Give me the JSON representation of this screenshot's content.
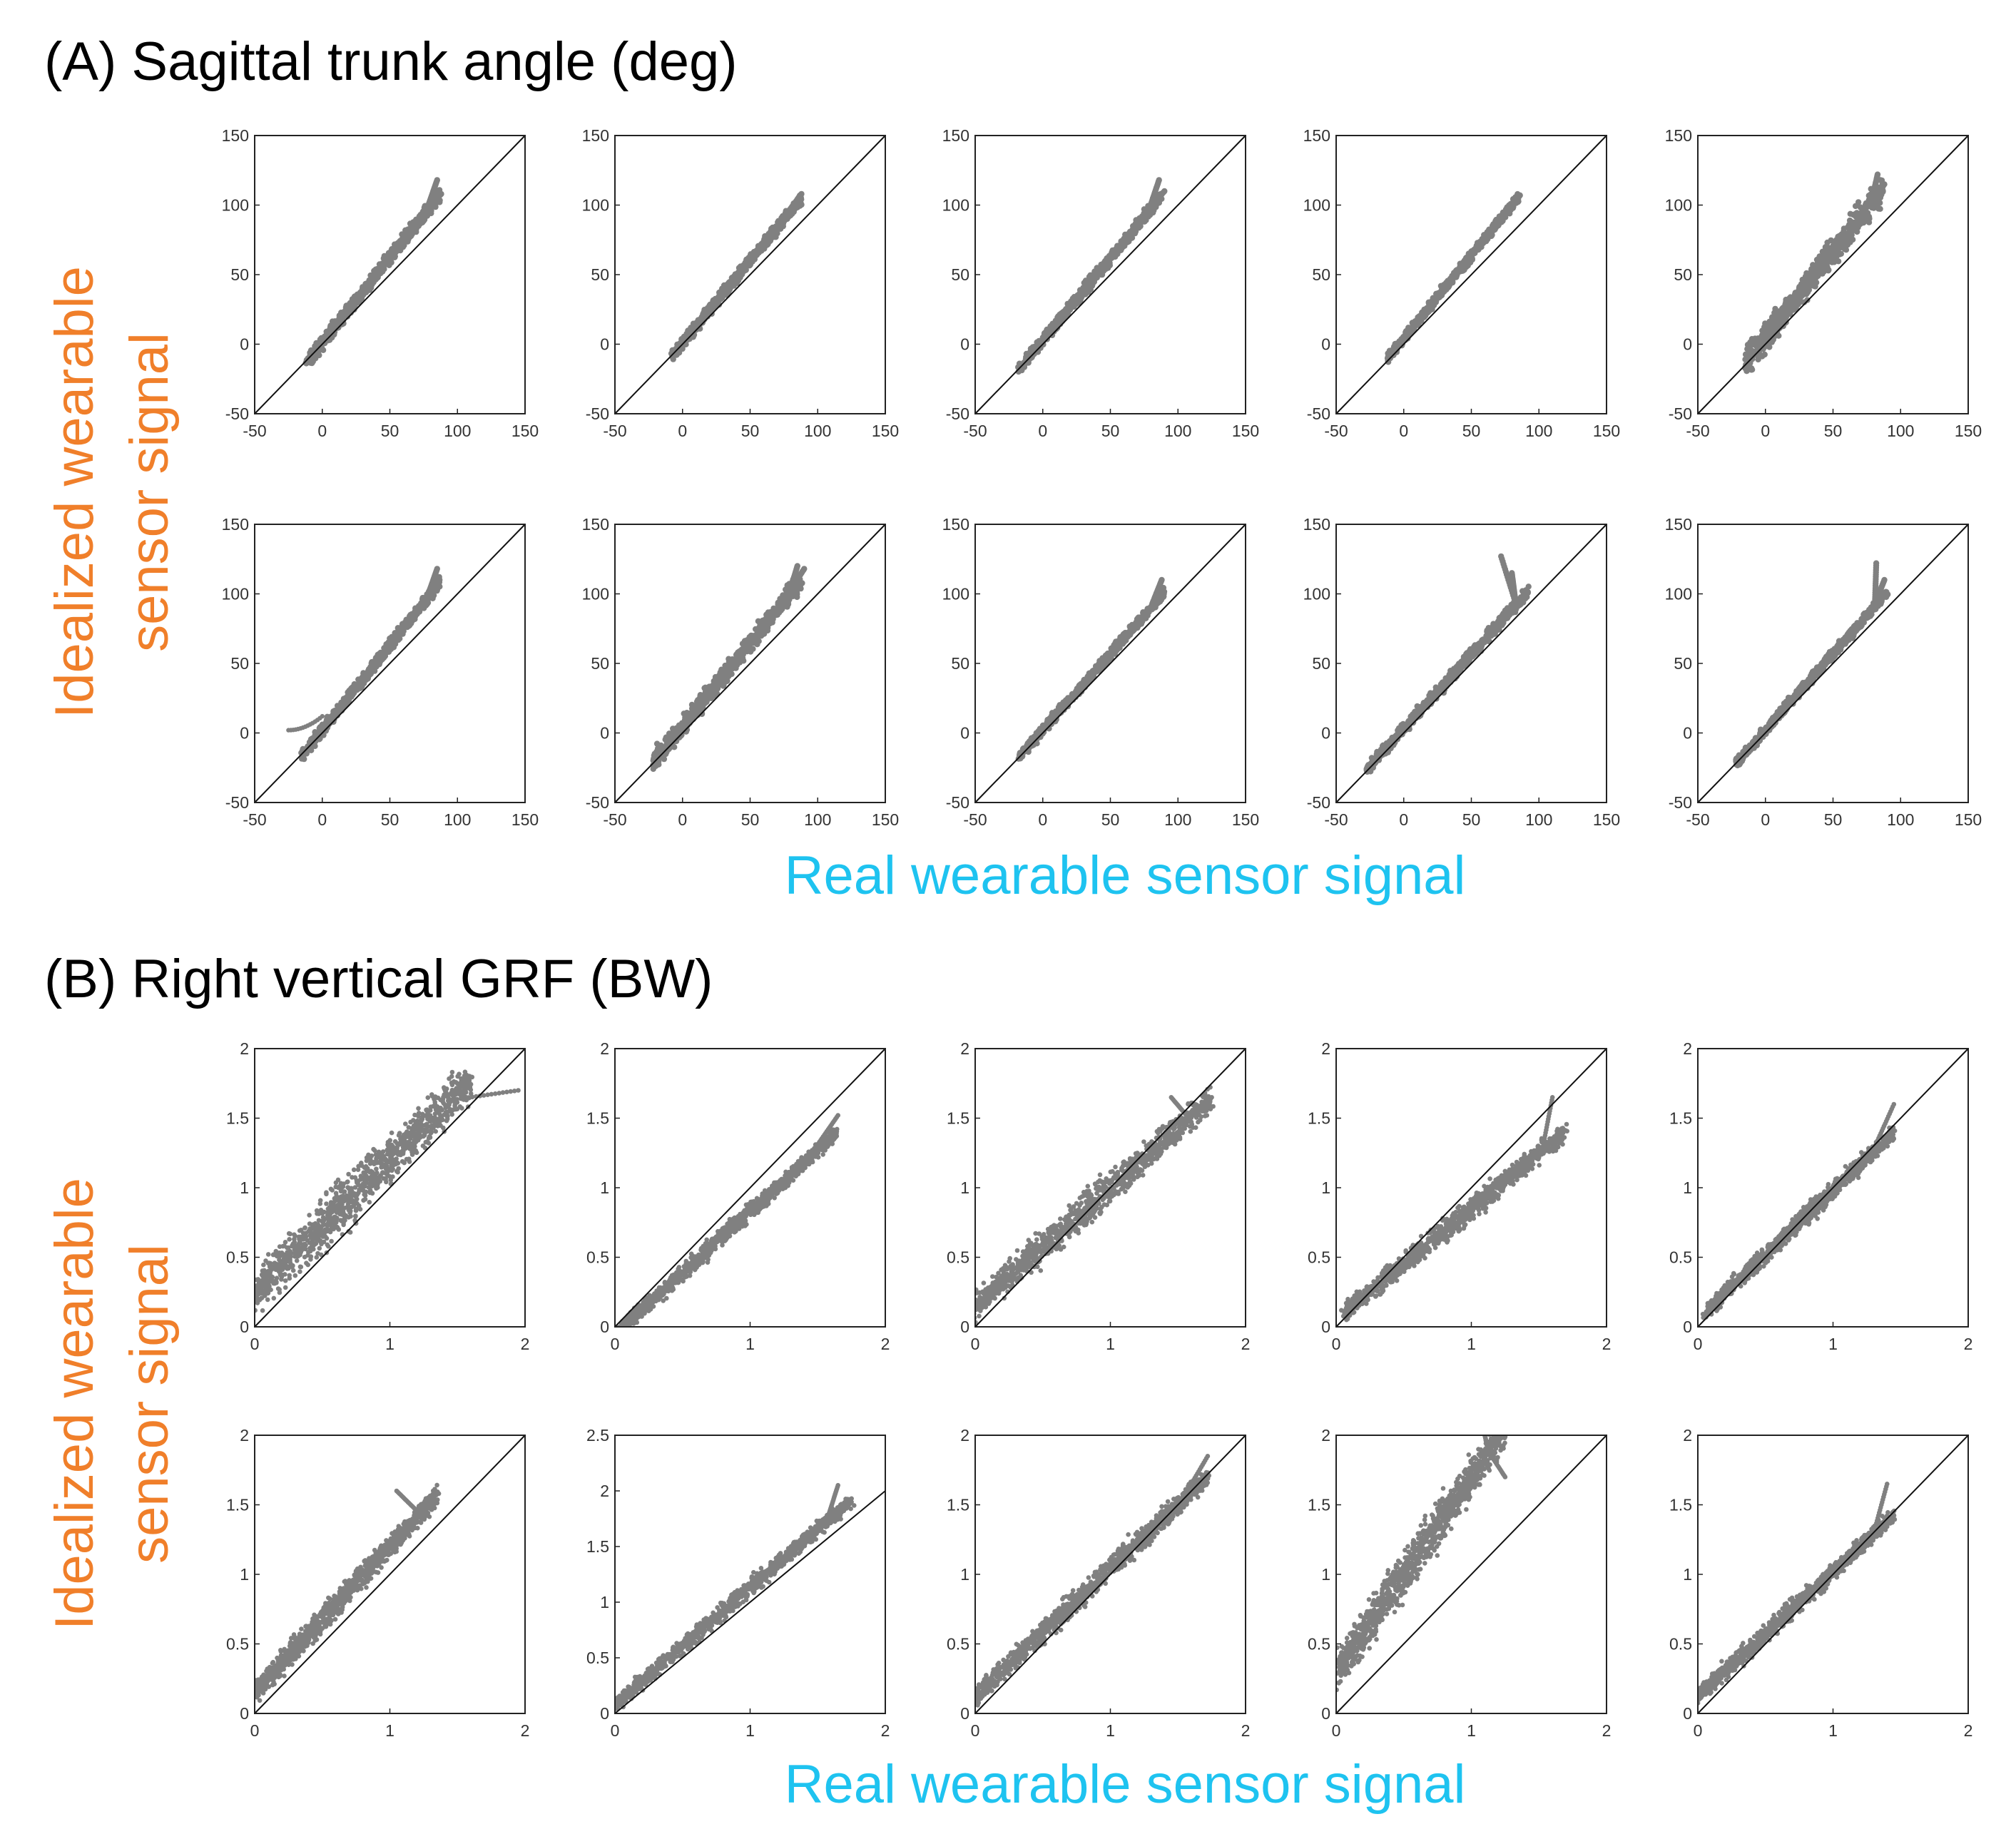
{
  "sections": {
    "A": {
      "title": "(A) Sagittal trunk angle (deg)"
    },
    "B": {
      "title": "(B) Right vertical GRF (BW)"
    }
  },
  "labels": {
    "y_line1": "Idealized wearable",
    "y_line2": "sensor signal",
    "x": "Real wearable sensor signal"
  },
  "colors": {
    "points": "#808080",
    "identity_line": "#111111",
    "ylabel": "#f07f2a",
    "xlabel": "#1ec3f0",
    "frame": "#222222"
  },
  "chart_data": [
    {
      "type": "scatter",
      "section": "A",
      "row": 1,
      "col": 1,
      "xlim": [
        -50,
        150
      ],
      "ylim": [
        -50,
        150
      ],
      "xticks": [
        -50,
        0,
        50,
        100,
        150
      ],
      "yticks": [
        -50,
        0,
        50,
        100,
        150
      ],
      "identity_line": true,
      "cloud": {
        "kind": "band",
        "x_range": [
          -12,
          87
        ],
        "slope": 1.23,
        "intercept": 1,
        "spread": 7,
        "tip": [
          [
            85,
            118
          ],
          [
            88,
            108
          ]
        ]
      }
    },
    {
      "type": "scatter",
      "section": "A",
      "row": 1,
      "col": 2,
      "xlim": [
        -50,
        150
      ],
      "ylim": [
        -50,
        150
      ],
      "xticks": [
        -50,
        0,
        50,
        100,
        150
      ],
      "yticks": [
        -50,
        0,
        50,
        100,
        150
      ],
      "identity_line": true,
      "cloud": {
        "kind": "band",
        "x_range": [
          -8,
          88
        ],
        "slope": 1.18,
        "intercept": 1,
        "spread": 6,
        "tip": [
          [
            88,
            108
          ]
        ]
      }
    },
    {
      "type": "scatter",
      "section": "A",
      "row": 1,
      "col": 3,
      "xlim": [
        -50,
        150
      ],
      "ylim": [
        -50,
        150
      ],
      "xticks": [
        -50,
        0,
        50,
        100,
        150
      ],
      "yticks": [
        -50,
        0,
        50,
        100,
        150
      ],
      "identity_line": true,
      "cloud": {
        "kind": "band",
        "x_range": [
          -18,
          88
        ],
        "slope": 1.18,
        "intercept": 3,
        "spread": 6,
        "tip": [
          [
            86,
            118
          ],
          [
            90,
            110
          ]
        ]
      }
    },
    {
      "type": "scatter",
      "section": "A",
      "row": 1,
      "col": 4,
      "xlim": [
        -50,
        150
      ],
      "ylim": [
        -50,
        150
      ],
      "xticks": [
        -50,
        0,
        50,
        100,
        150
      ],
      "yticks": [
        -50,
        0,
        50,
        100,
        150
      ],
      "identity_line": true,
      "cloud": {
        "kind": "band",
        "x_range": [
          -12,
          85
        ],
        "slope": 1.2,
        "intercept": 4,
        "spread": 5,
        "tip": [
          [
            86,
            107
          ]
        ]
      }
    },
    {
      "type": "scatter",
      "section": "A",
      "row": 1,
      "col": 5,
      "xlim": [
        -50,
        150
      ],
      "ylim": [
        -50,
        150
      ],
      "xticks": [
        -50,
        0,
        50,
        100,
        150
      ],
      "yticks": [
        -50,
        0,
        50,
        100,
        150
      ],
      "identity_line": true,
      "cloud": {
        "kind": "band",
        "x_range": [
          -15,
          87
        ],
        "slope": 1.22,
        "intercept": 5,
        "spread": 14,
        "tip": [
          [
            83,
            122
          ],
          [
            88,
            115
          ]
        ]
      }
    },
    {
      "type": "scatter",
      "section": "A",
      "row": 2,
      "col": 1,
      "xlim": [
        -50,
        150
      ],
      "ylim": [
        -50,
        150
      ],
      "xticks": [
        -50,
        0,
        50,
        100,
        150
      ],
      "yticks": [
        -50,
        0,
        50,
        100,
        150
      ],
      "identity_line": true,
      "cloud": {
        "kind": "band",
        "x_range": [
          -15,
          87
        ],
        "slope": 1.22,
        "intercept": 2,
        "spread": 6,
        "tip": [
          [
            85,
            118
          ]
        ]
      },
      "outlier_trail": {
        "x_range": [
          -25,
          0
        ],
        "y_range": [
          2,
          12
        ]
      }
    },
    {
      "type": "scatter",
      "section": "A",
      "row": 2,
      "col": 2,
      "xlim": [
        -50,
        150
      ],
      "ylim": [
        -50,
        150
      ],
      "xticks": [
        -50,
        0,
        50,
        100,
        150
      ],
      "yticks": [
        -50,
        0,
        50,
        100,
        150
      ],
      "identity_line": true,
      "cloud": {
        "kind": "band",
        "x_range": [
          -22,
          88
        ],
        "slope": 1.2,
        "intercept": 5,
        "spread": 10,
        "tip": [
          [
            85,
            120
          ],
          [
            90,
            118
          ]
        ]
      }
    },
    {
      "type": "scatter",
      "section": "A",
      "row": 2,
      "col": 3,
      "xlim": [
        -50,
        150
      ],
      "ylim": [
        -50,
        150
      ],
      "xticks": [
        -50,
        0,
        50,
        100,
        150
      ],
      "yticks": [
        -50,
        0,
        50,
        100,
        150
      ],
      "identity_line": true,
      "cloud": {
        "kind": "band",
        "x_range": [
          -18,
          90
        ],
        "slope": 1.1,
        "intercept": 2,
        "spread": 5,
        "tip": [
          [
            88,
            110
          ]
        ]
      }
    },
    {
      "type": "scatter",
      "section": "A",
      "row": 2,
      "col": 4,
      "xlim": [
        -50,
        150
      ],
      "ylim": [
        -50,
        150
      ],
      "xticks": [
        -50,
        0,
        50,
        100,
        150
      ],
      "yticks": [
        -50,
        0,
        50,
        100,
        150
      ],
      "identity_line": true,
      "cloud": {
        "kind": "band",
        "x_range": [
          -28,
          92
        ],
        "slope": 1.07,
        "intercept": 3,
        "spread": 6,
        "tip": [
          [
            72,
            127
          ],
          [
            80,
            115
          ]
        ]
      }
    },
    {
      "type": "scatter",
      "section": "A",
      "row": 2,
      "col": 5,
      "xlim": [
        -50,
        150
      ],
      "ylim": [
        -50,
        150
      ],
      "xticks": [
        -50,
        0,
        50,
        100,
        150
      ],
      "yticks": [
        -50,
        0,
        50,
        100,
        150
      ],
      "identity_line": true,
      "cloud": {
        "kind": "band",
        "x_range": [
          -22,
          90
        ],
        "slope": 1.1,
        "intercept": 2,
        "spread": 5,
        "tip": [
          [
            82,
            122
          ],
          [
            88,
            110
          ]
        ]
      }
    },
    {
      "type": "scatter",
      "section": "B",
      "row": 1,
      "col": 1,
      "xlim": [
        0,
        2
      ],
      "ylim": [
        0,
        2
      ],
      "xticks": [
        0,
        1,
        2
      ],
      "yticks": [
        0,
        0.5,
        1,
        1.5,
        2
      ],
      "identity_line": true,
      "cloud": {
        "kind": "cloud",
        "x_range": [
          0,
          1.6
        ],
        "slope": 0.95,
        "intercept": 0.25,
        "spread": 0.28,
        "tip": [
          [
            1.4,
            1.72
          ],
          [
            1.95,
            1.7
          ]
        ]
      }
    },
    {
      "type": "scatter",
      "section": "B",
      "row": 1,
      "col": 2,
      "xlim": [
        0,
        2
      ],
      "ylim": [
        0,
        2
      ],
      "xticks": [
        0,
        1,
        2
      ],
      "yticks": [
        0,
        0.5,
        1,
        1.5,
        2
      ],
      "identity_line": true,
      "cloud": {
        "kind": "cloud",
        "x_range": [
          0.05,
          1.65
        ],
        "slope": 0.88,
        "intercept": -0.05,
        "spread": 0.09,
        "tip": [
          [
            1.65,
            1.52
          ]
        ]
      }
    },
    {
      "type": "scatter",
      "section": "B",
      "row": 1,
      "col": 3,
      "xlim": [
        0,
        2
      ],
      "ylim": [
        0,
        2
      ],
      "xticks": [
        0,
        1,
        2
      ],
      "yticks": [
        0,
        0.5,
        1,
        1.5,
        2
      ],
      "identity_line": true,
      "cloud": {
        "kind": "cloud",
        "x_range": [
          0,
          1.75
        ],
        "slope": 0.85,
        "intercept": 0.15,
        "spread": 0.18,
        "tip": [
          [
            1.45,
            1.65
          ],
          [
            1.75,
            1.65
          ]
        ]
      }
    },
    {
      "type": "scatter",
      "section": "B",
      "row": 1,
      "col": 4,
      "xlim": [
        0,
        2
      ],
      "ylim": [
        0,
        2
      ],
      "xticks": [
        0,
        1,
        2
      ],
      "yticks": [
        0,
        0.5,
        1,
        1.5,
        2
      ],
      "identity_line": true,
      "cloud": {
        "kind": "cloud",
        "x_range": [
          0.05,
          1.7
        ],
        "slope": 0.8,
        "intercept": 0.05,
        "spread": 0.12,
        "tip": [
          [
            1.6,
            1.65
          ]
        ]
      }
    },
    {
      "type": "scatter",
      "section": "B",
      "row": 1,
      "col": 5,
      "xlim": [
        0,
        2
      ],
      "ylim": [
        0,
        2
      ],
      "xticks": [
        0,
        1,
        2
      ],
      "yticks": [
        0,
        0.5,
        1,
        1.5,
        2
      ],
      "identity_line": true,
      "cloud": {
        "kind": "cloud",
        "x_range": [
          0.05,
          1.45
        ],
        "slope": 0.93,
        "intercept": 0.05,
        "spread": 0.1,
        "tip": [
          [
            1.45,
            1.6
          ]
        ]
      }
    },
    {
      "type": "scatter",
      "section": "B",
      "row": 2,
      "col": 1,
      "xlim": [
        0,
        2
      ],
      "ylim": [
        0,
        2
      ],
      "xticks": [
        0,
        1,
        2
      ],
      "yticks": [
        0,
        0.5,
        1,
        1.5,
        2
      ],
      "identity_line": true,
      "cloud": {
        "kind": "cloud",
        "x_range": [
          0,
          1.35
        ],
        "slope": 1.05,
        "intercept": 0.15,
        "spread": 0.14,
        "tip": [
          [
            1.05,
            1.6
          ],
          [
            1.3,
            1.5
          ]
        ]
      }
    },
    {
      "type": "scatter",
      "section": "B",
      "row": 2,
      "col": 2,
      "xlim": [
        0,
        2
      ],
      "ylim": [
        0,
        2.5
      ],
      "xticks": [
        0,
        1,
        2
      ],
      "yticks": [
        0,
        0.5,
        1,
        1.5,
        2,
        2.5
      ],
      "identity_line": true,
      "cloud": {
        "kind": "cloud",
        "x_range": [
          0,
          1.75
        ],
        "slope": 1.05,
        "intercept": 0.08,
        "spread": 0.12,
        "tip": [
          [
            1.65,
            2.05
          ],
          [
            1.75,
            1.9
          ]
        ]
      }
    },
    {
      "type": "scatter",
      "section": "B",
      "row": 2,
      "col": 3,
      "xlim": [
        0,
        2
      ],
      "ylim": [
        0,
        2
      ],
      "xticks": [
        0,
        1,
        2
      ],
      "yticks": [
        0,
        0.5,
        1,
        1.5,
        2
      ],
      "identity_line": true,
      "cloud": {
        "kind": "cloud",
        "x_range": [
          0,
          1.72
        ],
        "slope": 0.92,
        "intercept": 0.12,
        "spread": 0.13,
        "tip": [
          [
            1.72,
            1.85
          ]
        ]
      }
    },
    {
      "type": "scatter",
      "section": "B",
      "row": 2,
      "col": 4,
      "xlim": [
        0,
        2
      ],
      "ylim": [
        0,
        2
      ],
      "xticks": [
        0,
        1,
        2
      ],
      "yticks": [
        0,
        0.5,
        1,
        1.5,
        2
      ],
      "identity_line": true,
      "cloud": {
        "kind": "cloud",
        "x_range": [
          0,
          1.25
        ],
        "slope": 1.4,
        "intercept": 0.3,
        "spread": 0.25,
        "tip": [
          [
            1.1,
            2.0
          ],
          [
            1.25,
            1.7
          ]
        ]
      }
    },
    {
      "type": "scatter",
      "section": "B",
      "row": 2,
      "col": 5,
      "xlim": [
        0,
        2
      ],
      "ylim": [
        0,
        2
      ],
      "xticks": [
        0,
        1,
        2
      ],
      "yticks": [
        0,
        0.5,
        1,
        1.5,
        2
      ],
      "identity_line": true,
      "cloud": {
        "kind": "cloud",
        "x_range": [
          0,
          1.45
        ],
        "slope": 0.9,
        "intercept": 0.12,
        "spread": 0.1,
        "tip": [
          [
            1.4,
            1.65
          ]
        ]
      }
    }
  ]
}
